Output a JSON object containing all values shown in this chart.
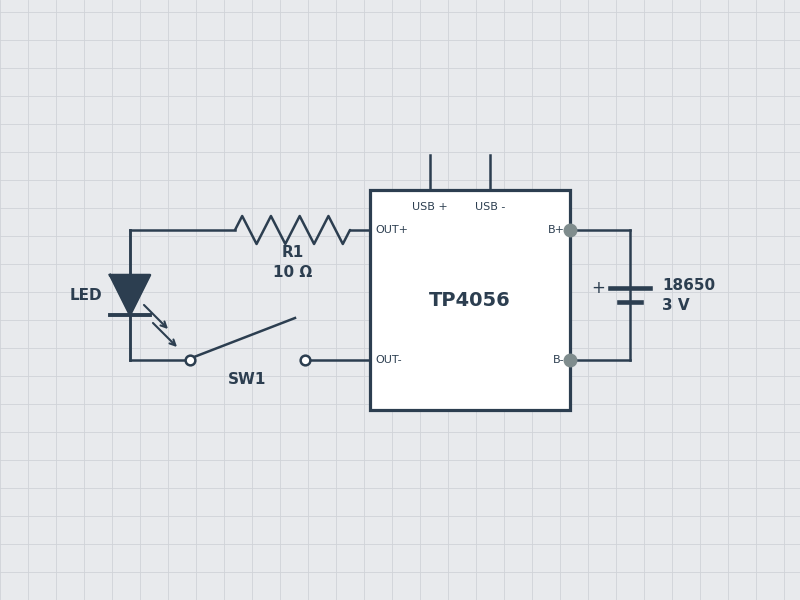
{
  "bg_color": "#e8eaed",
  "grid_color": "#d0d3d8",
  "line_color": "#2c3e50",
  "dot_color": "#7f8c8d",
  "ic_label": "TP4056",
  "bat_label1": "18650",
  "bat_label2": "3 V",
  "res_label1": "R1",
  "res_label2": "10 Ω",
  "sw_label": "SW1",
  "led_label": "LED",
  "usb_p": "USB +",
  "usb_n": "USB -",
  "out_p": "OUT+",
  "out_n": "OUT-",
  "bp": "B+",
  "bn": "B-",
  "figsize": [
    8.0,
    6.0
  ],
  "dpi": 100,
  "lw": 1.8
}
